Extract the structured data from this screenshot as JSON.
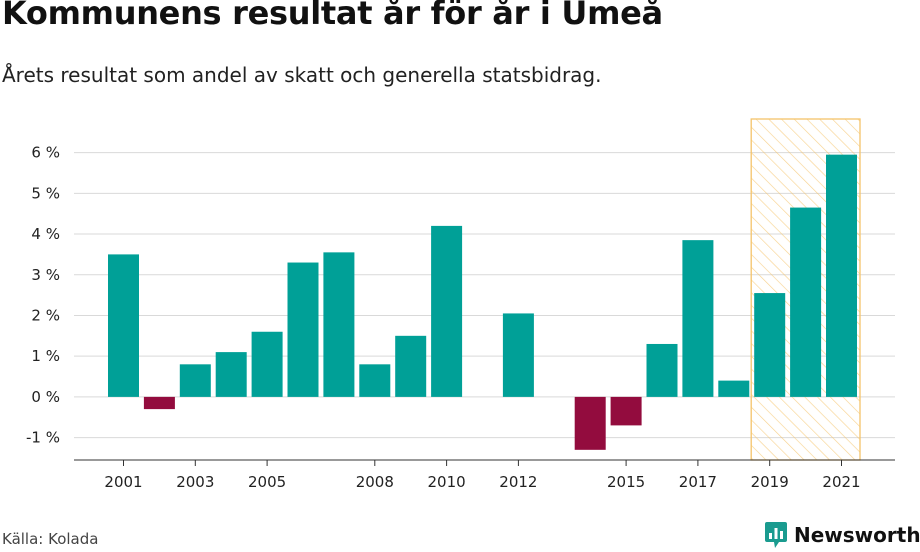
{
  "title": "Kommunens resultat år för år i Umeå",
  "subtitle": "Årets resultat som andel av skatt och generella statsbidrag.",
  "source": "Källa: Kolada",
  "brand": "Newsworthy",
  "colors": {
    "positive": "#00a097",
    "negative": "#930c3e",
    "highlight_stroke": "#f5c46a",
    "gridline": "#d9d9d9",
    "brand": "#1a9b8f"
  },
  "chart_data": {
    "type": "bar",
    "title": "Kommunens resultat år för år i Umeå",
    "xlabel": "",
    "ylabel": "",
    "categories": [
      "2001",
      "2002",
      "2003",
      "2004",
      "2005",
      "2006",
      "2007",
      "2008",
      "2009",
      "2010",
      "2011",
      "2012",
      "2013",
      "2014",
      "2015",
      "2016",
      "2017",
      "2018",
      "2019",
      "2020",
      "2021"
    ],
    "values": [
      3.5,
      -0.3,
      0.8,
      1.1,
      1.6,
      3.3,
      3.55,
      0.8,
      1.5,
      4.2,
      null,
      2.05,
      null,
      -1.3,
      -0.7,
      1.3,
      3.85,
      0.4,
      2.55,
      4.65,
      5.95
    ],
    "x_tick_labels": [
      "2001",
      "2003",
      "2005",
      "2008",
      "2010",
      "2012",
      "2015",
      "2017",
      "2019",
      "2021"
    ],
    "y_ticks": [
      -1,
      0,
      1,
      2,
      3,
      4,
      5,
      6
    ],
    "y_tick_labels": [
      "-1 %",
      "0 %",
      "1 %",
      "2 %",
      "3 %",
      "4 %",
      "5 %",
      "6 %"
    ],
    "ylim": [
      -1.55,
      6.85
    ],
    "highlight_range": [
      "2019",
      "2021"
    ],
    "grid": true,
    "legend": "none"
  }
}
